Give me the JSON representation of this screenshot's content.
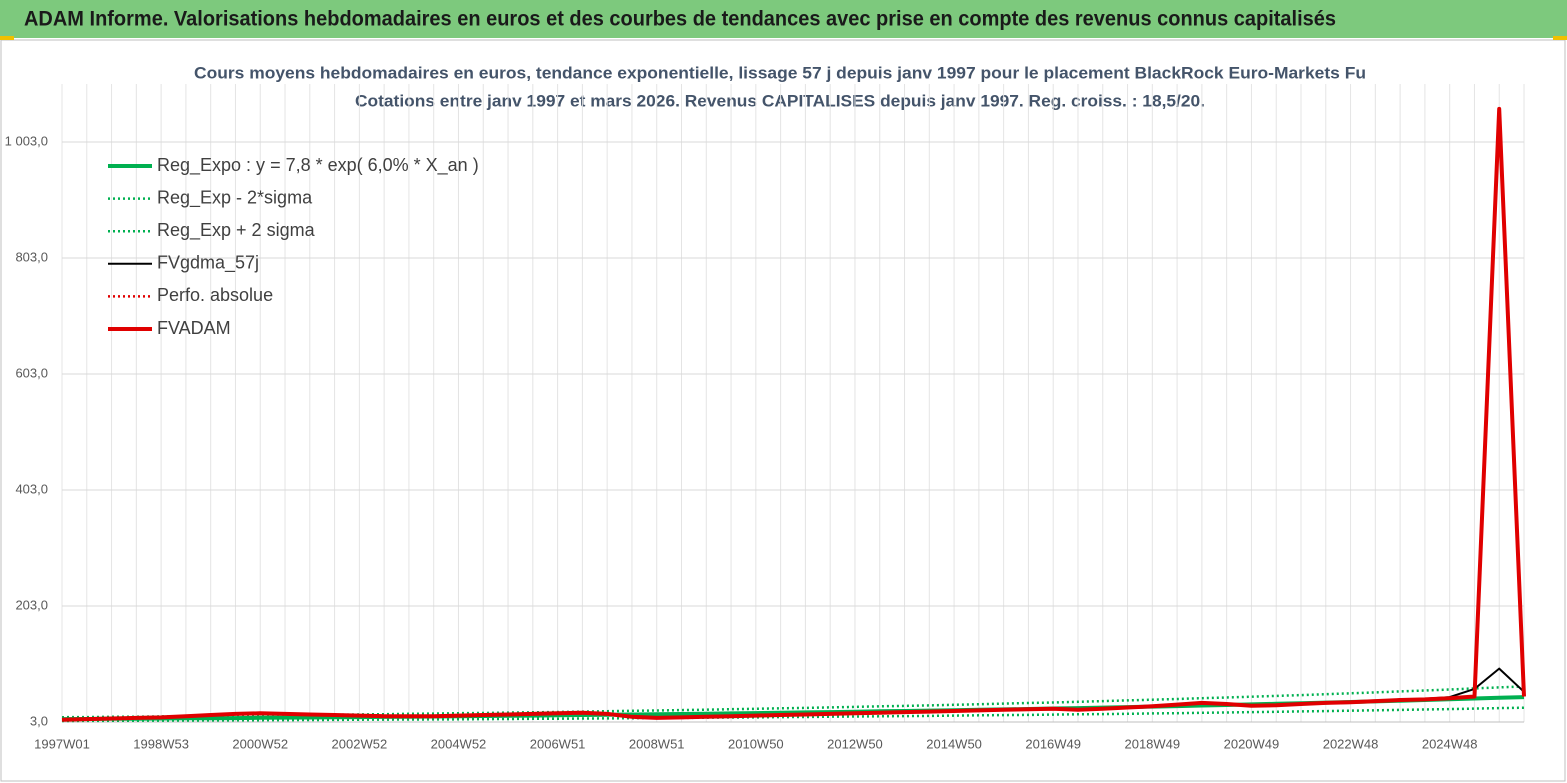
{
  "header": {
    "title": "ADAM Informe. Valorisations hebdomadaires en euros et des courbes de tendances avec prise en compte des revenus connus capitalisés"
  },
  "chart_data": {
    "type": "line",
    "title": "Cours moyens hebdomadaires en euros, tendance exponentielle, lissage 57 j depuis janv 1997  pour le placement BlackRock Euro-Markets Fu",
    "subtitle": "Cotations entre janv 1997 et mars 2026. Revenus CAPITALISES  depuis janv 1997. Reg. croiss. : 18,5/20.",
    "categories": [
      "1997W01",
      null,
      null,
      null,
      "1998W53",
      null,
      null,
      null,
      "2000W52",
      null,
      null,
      null,
      "2002W52",
      null,
      null,
      null,
      "2004W52",
      null,
      null,
      null,
      "2006W51",
      null,
      null,
      null,
      "2008W51",
      null,
      null,
      null,
      "2010W50",
      null,
      null,
      null,
      "2012W50",
      null,
      null,
      null,
      "2014W50",
      null,
      null,
      null,
      "2016W49",
      null,
      null,
      null,
      "2018W49",
      null,
      null,
      null,
      "2020W49",
      null,
      null,
      null,
      "2022W48",
      null,
      null,
      null,
      "2024W48",
      null,
      null,
      null
    ],
    "ylim": [
      3,
      1103
    ],
    "yticks": [
      {
        "value": 3,
        "label": "3,0"
      },
      {
        "value": 203,
        "label": "203,0"
      },
      {
        "value": 403,
        "label": "403,0"
      },
      {
        "value": 603,
        "label": "603,0"
      },
      {
        "value": 803,
        "label": "803,0"
      },
      {
        "value": 1003,
        "label": "1 003,0"
      }
    ],
    "grid": true,
    "legend": "top-left",
    "series": [
      {
        "name": "Reg_Expo : y = 7,8 * exp( 6,0% *  X_an )",
        "color": "#00b050",
        "style": "thick",
        "values": [
          8.0,
          8.2,
          8.5,
          8.7,
          9.0,
          9.3,
          9.6,
          9.8,
          10.2,
          10.5,
          10.8,
          11.1,
          11.5,
          11.8,
          12.2,
          12.5,
          12.9,
          13.3,
          13.7,
          14.1,
          14.5,
          15.0,
          15.4,
          15.9,
          16.3,
          16.8,
          17.3,
          17.9,
          18.4,
          19.0,
          19.5,
          20.1,
          20.7,
          21.4,
          22.0,
          22.6,
          23.3,
          24.1,
          24.8,
          25.5,
          26.2,
          27.0,
          27.9,
          28.7,
          29.6,
          30.4,
          31.4,
          32.3,
          33.3,
          34.3,
          35.3,
          36.4,
          37.5,
          38.6,
          39.8,
          40.9,
          42.2,
          43.5,
          44.8,
          46.0
        ]
      },
      {
        "name": "Reg_Exp - 2*sigma",
        "color": "#00b050",
        "style": "dotted",
        "values": [
          4.8,
          4.9,
          5.1,
          5.2,
          5.4,
          5.6,
          5.8,
          5.9,
          6.1,
          6.3,
          6.5,
          6.7,
          6.9,
          7.1,
          7.3,
          7.5,
          7.7,
          8.0,
          8.2,
          8.5,
          8.7,
          9.0,
          9.2,
          9.5,
          9.8,
          10.1,
          10.4,
          10.7,
          11.0,
          11.4,
          11.7,
          12.1,
          12.4,
          12.8,
          13.2,
          13.6,
          14.0,
          14.5,
          14.9,
          15.3,
          15.7,
          16.2,
          16.7,
          17.2,
          17.8,
          18.2,
          18.8,
          19.4,
          20.0,
          20.6,
          21.2,
          21.8,
          22.5,
          23.2,
          23.9,
          24.5,
          25.3,
          26.1,
          26.9,
          27.6
        ]
      },
      {
        "name": "Reg_Exp + 2 sigma",
        "color": "#00b050",
        "style": "dotted",
        "values": [
          11.2,
          11.5,
          11.9,
          12.2,
          12.6,
          13.0,
          13.4,
          13.7,
          14.3,
          14.7,
          15.1,
          15.5,
          16.1,
          16.5,
          17.1,
          17.5,
          18.1,
          18.6,
          19.2,
          19.7,
          20.3,
          21.0,
          21.6,
          22.3,
          22.8,
          23.5,
          24.2,
          25.1,
          25.8,
          26.6,
          27.3,
          28.1,
          29.0,
          30.0,
          30.8,
          31.6,
          32.6,
          33.7,
          34.7,
          35.7,
          36.7,
          37.8,
          39.1,
          40.2,
          41.4,
          42.6,
          44.0,
          45.2,
          46.6,
          48.0,
          49.4,
          51.0,
          52.5,
          54.0,
          55.7,
          57.3,
          59.1,
          60.9,
          62.7,
          64.4
        ]
      },
      {
        "name": "FVgdma_57j",
        "color": "#000000",
        "style": "thin",
        "values": [
          7,
          8,
          9,
          10,
          11,
          12,
          14,
          16,
          17,
          17,
          16,
          15,
          14,
          13,
          13,
          13,
          14,
          15,
          16,
          17,
          18,
          18,
          17,
          13,
          11,
          11,
          12,
          13,
          14,
          15,
          16,
          17,
          18,
          19,
          20,
          21,
          22,
          23,
          24,
          25,
          25,
          25,
          26,
          28,
          30,
          33,
          35,
          34,
          32,
          32,
          34,
          36,
          37,
          39,
          41,
          43,
          46,
          60,
          95,
          55
        ]
      },
      {
        "name": "Perfo. absolue",
        "color": "#e00000",
        "style": "dotted",
        "values": [
          7,
          8,
          9,
          10,
          11,
          13,
          15,
          17,
          18,
          17,
          16,
          15,
          14,
          13,
          13,
          13,
          14,
          15,
          16,
          17,
          18,
          19,
          17,
          12,
          10,
          11,
          12,
          13,
          14,
          15,
          16,
          17,
          18,
          19,
          20,
          21,
          22,
          23,
          24,
          25,
          26,
          24,
          26,
          28,
          30,
          33,
          36,
          34,
          31,
          32,
          34,
          36,
          37,
          39,
          41,
          42,
          44,
          47,
          1060,
          47
        ]
      },
      {
        "name": "FVADAM",
        "color": "#e00000",
        "style": "thick",
        "values": [
          7,
          8,
          9,
          10,
          11,
          13,
          15,
          17,
          18,
          17,
          16,
          15,
          14,
          13,
          13,
          13,
          14,
          15,
          16,
          17,
          18,
          19,
          17,
          12,
          10,
          11,
          12,
          13,
          14,
          15,
          16,
          17,
          18,
          19,
          20,
          21,
          22,
          23,
          24,
          25,
          26,
          24,
          26,
          28,
          30,
          33,
          36,
          34,
          31,
          32,
          34,
          36,
          37,
          39,
          41,
          42,
          44,
          47,
          1060,
          47
        ]
      }
    ]
  }
}
